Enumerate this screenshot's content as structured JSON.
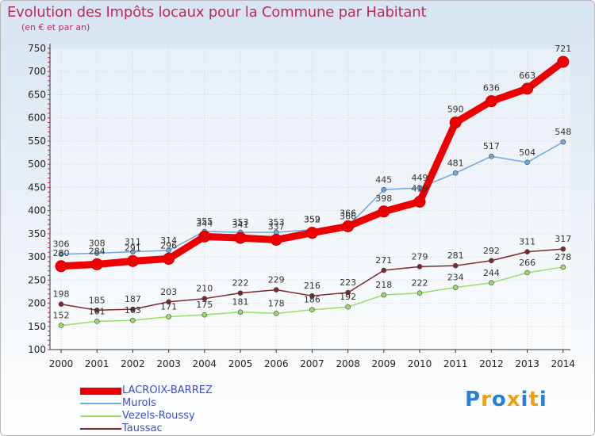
{
  "header": {
    "title": "Evolution des Impôts locaux pour la Commune par Habitant",
    "subtitle": "(en € et par an)"
  },
  "chart_data": {
    "type": "line",
    "title": "Evolution des Impôts locaux pour la Commune par Habitant",
    "subtitle": "(en € et par an)",
    "xlabel": "",
    "ylabel": "",
    "x": [
      "2000",
      "2001",
      "2002",
      "2003",
      "2004",
      "2005",
      "2006",
      "2007",
      "2008",
      "2009",
      "2010",
      "2011",
      "2012",
      "2013",
      "2014"
    ],
    "ylim": [
      100,
      750
    ],
    "yticks": [
      100,
      150,
      200,
      250,
      300,
      350,
      400,
      450,
      500,
      550,
      600,
      650,
      700,
      750
    ],
    "grid": true,
    "legend_position": "bottom-left",
    "series": [
      {
        "name": "LACROIX-BARREZ",
        "color": "#ee0000",
        "values": [
          280,
          284,
          291,
          296,
          344,
          341,
          337,
          352,
          366,
          398,
          419,
          590,
          636,
          663,
          721
        ]
      },
      {
        "name": "Murols",
        "color": "#6fa8dc",
        "values": [
          306,
          308,
          311,
          314,
          355,
          353,
          353,
          359,
          366,
          445,
          449,
          481,
          517,
          504,
          548
        ]
      },
      {
        "name": "Vezels-Roussy",
        "color": "#99dd66",
        "values": [
          152,
          161,
          163,
          171,
          175,
          181,
          178,
          186,
          192,
          218,
          222,
          234,
          244,
          266,
          278
        ]
      },
      {
        "name": "Taussac",
        "color": "#7a2a2a",
        "values": [
          198,
          185,
          187,
          203,
          210,
          222,
          229,
          216,
          223,
          271,
          279,
          281,
          292,
          311,
          317
        ]
      }
    ]
  },
  "logo": {
    "letters": [
      "P",
      "r",
      "o",
      "x",
      "i",
      "t",
      "i"
    ],
    "colors": [
      "#2a7fd4",
      "#e8a21c",
      "#2a7fd4",
      "#e8a21c",
      "#2a7fd4",
      "#e8a21c",
      "#2a7fd4"
    ]
  }
}
